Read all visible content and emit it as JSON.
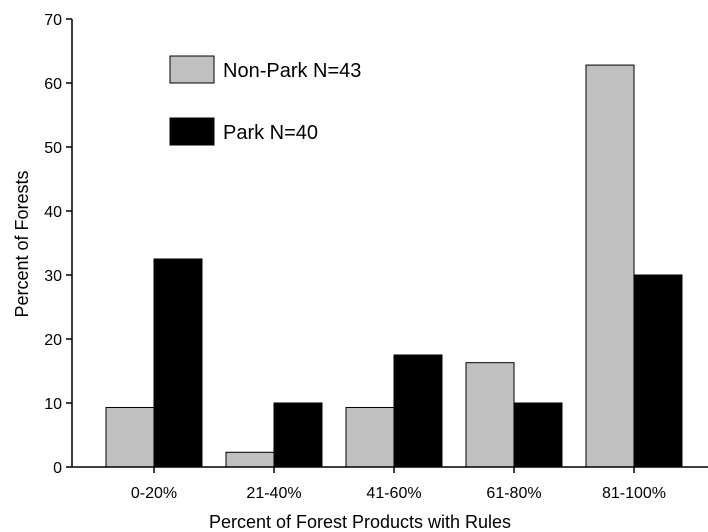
{
  "chart_data": {
    "type": "bar",
    "categories": [
      "0-20%",
      "21-40%",
      "41-60%",
      "61-80%",
      "81-100%"
    ],
    "series": [
      {
        "name": "Non-Park N=43",
        "values": [
          9.3,
          2.3,
          9.3,
          16.3,
          62.8
        ]
      },
      {
        "name": "Park N=40",
        "values": [
          32.5,
          10.0,
          17.5,
          10.0,
          30.0
        ]
      }
    ],
    "xlabel": "Percent of Forest Products with Rules",
    "ylabel": "Percent of Forests",
    "ylim": [
      0,
      70
    ],
    "yticks": [
      0,
      10,
      20,
      30,
      40,
      50,
      60,
      70
    ],
    "grid": false,
    "legend_position": "top-left",
    "colors": {
      "non_park": "#c0c0c0",
      "park": "#000000"
    }
  }
}
